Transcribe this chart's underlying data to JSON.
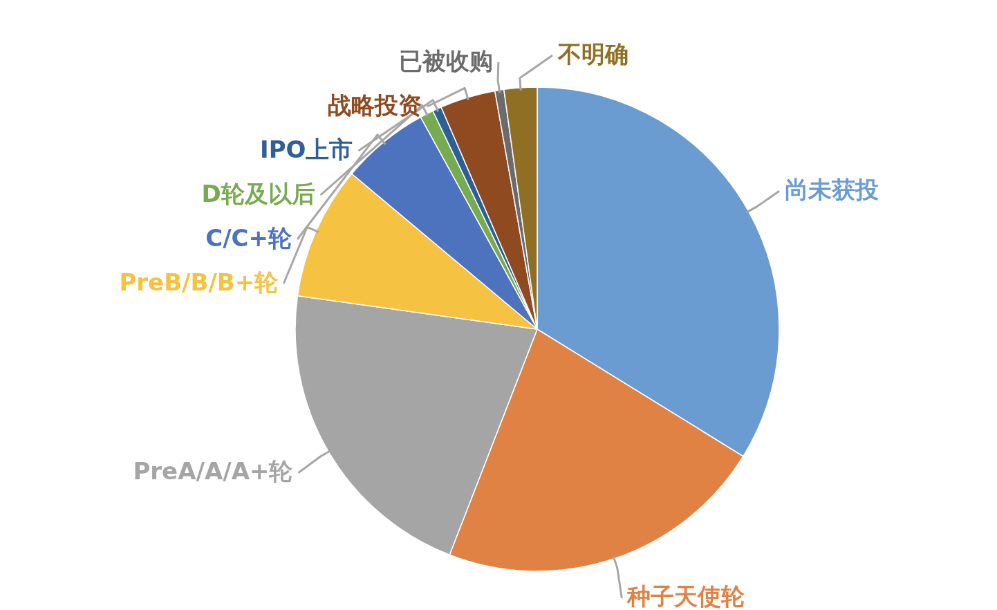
{
  "chart_data": {
    "type": "pie",
    "categories": [
      "尚未获投",
      "种子天使轮",
      "PreA/A/A+轮",
      "PreB/B/B+轮",
      "C/C+轮",
      "D轮及以后",
      "IPO上市",
      "战略投资",
      "已被收购",
      "不明确"
    ],
    "values": [
      33.8,
      22.1,
      21.3,
      8.9,
      5.9,
      0.9,
      0.6,
      3.7,
      0.6,
      2.2
    ],
    "colors": [
      "#6a9bd1",
      "#e08244",
      "#a5a5a5",
      "#f5c242",
      "#4d72be",
      "#77ab4f",
      "#2f5f97",
      "#8f4a1f",
      "#6b6b6b",
      "#8f6f23"
    ]
  }
}
